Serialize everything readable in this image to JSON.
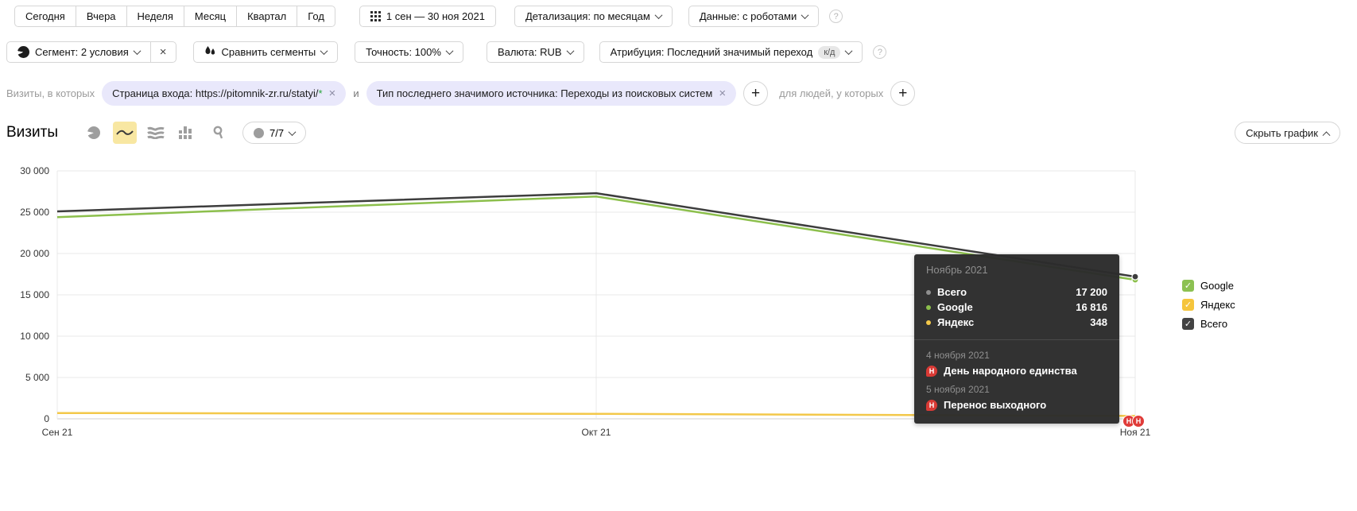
{
  "toolbar": {
    "period_buttons": [
      "Сегодня",
      "Вчера",
      "Неделя",
      "Месяц",
      "Квартал",
      "Год"
    ],
    "date_range": "1 сен — 30 ноя 2021",
    "detail": "Детализация: по месяцам",
    "data_mode": "Данные: с роботами"
  },
  "filters": {
    "segment": "Сегмент: 2 условия",
    "segment_clear": "×",
    "compare": "Сравнить сегменты",
    "accuracy": "Точность: 100%",
    "currency": "Валюта: RUB",
    "attribution": "Атрибуция: Последний значимый переход",
    "attribution_badge": "к/д"
  },
  "segment_row": {
    "prefix": "Визиты, в которых",
    "conjunction": "и",
    "suffix": "для людей, у которых",
    "chips": [
      {
        "text": "Страница входа: https://pitomnik-zr.ru/statyi/",
        "wildcard": "*"
      },
      {
        "text": "Тип последнего значимого источника: Переходы из поисковых систем",
        "wildcard": ""
      }
    ]
  },
  "chart_header": {
    "title": "Визиты",
    "annotations_count": "7/7",
    "hide_chart": "Скрыть график"
  },
  "chart_data": {
    "type": "line",
    "title": "Визиты",
    "categories": [
      "Сен 21",
      "Окт 21",
      "Ноя 21"
    ],
    "series": [
      {
        "name": "Всего",
        "color": "#3d3d3d",
        "values": [
          25100,
          27300,
          17200
        ],
        "end_dot": true
      },
      {
        "name": "Google",
        "color": "#8cbf4c",
        "values": [
          24400,
          26900,
          16816
        ],
        "end_dot": true
      },
      {
        "name": "Яндекс",
        "color": "#f3c84a",
        "values": [
          700,
          600,
          348
        ],
        "end_dot": false
      }
    ],
    "ylim": [
      0,
      30000
    ],
    "yticks": [
      0,
      5000,
      10000,
      15000,
      20000,
      25000,
      30000
    ],
    "ytick_labels": [
      "0",
      "5 000",
      "10 000",
      "15 000",
      "20 000",
      "25 000",
      "30 000"
    ],
    "grid": true,
    "legend_position": "right"
  },
  "legend": {
    "items": [
      {
        "label": "Google",
        "color": "#8cc152",
        "check": "✓"
      },
      {
        "label": "Яндекс",
        "color": "#f5c53c",
        "check": "✓"
      },
      {
        "label": "Всего",
        "color": "#434343",
        "check": "✓"
      }
    ]
  },
  "tooltip": {
    "title": "Ноябрь 2021",
    "rows": [
      {
        "name": "Всего",
        "value": "17 200",
        "color": "#8f8f8f"
      },
      {
        "name": "Google",
        "value": "16 816",
        "color": "#8cbf4c"
      },
      {
        "name": "Яндекс",
        "value": "348",
        "color": "#f3c84a"
      }
    ],
    "events": [
      {
        "date": "4 ноября 2021",
        "badge": "Н",
        "label": "День народного единства"
      },
      {
        "date": "5 ноября 2021",
        "badge": "Н",
        "label": "Перенос выходного"
      }
    ]
  },
  "holiday_marker": {
    "letter": "Н"
  }
}
